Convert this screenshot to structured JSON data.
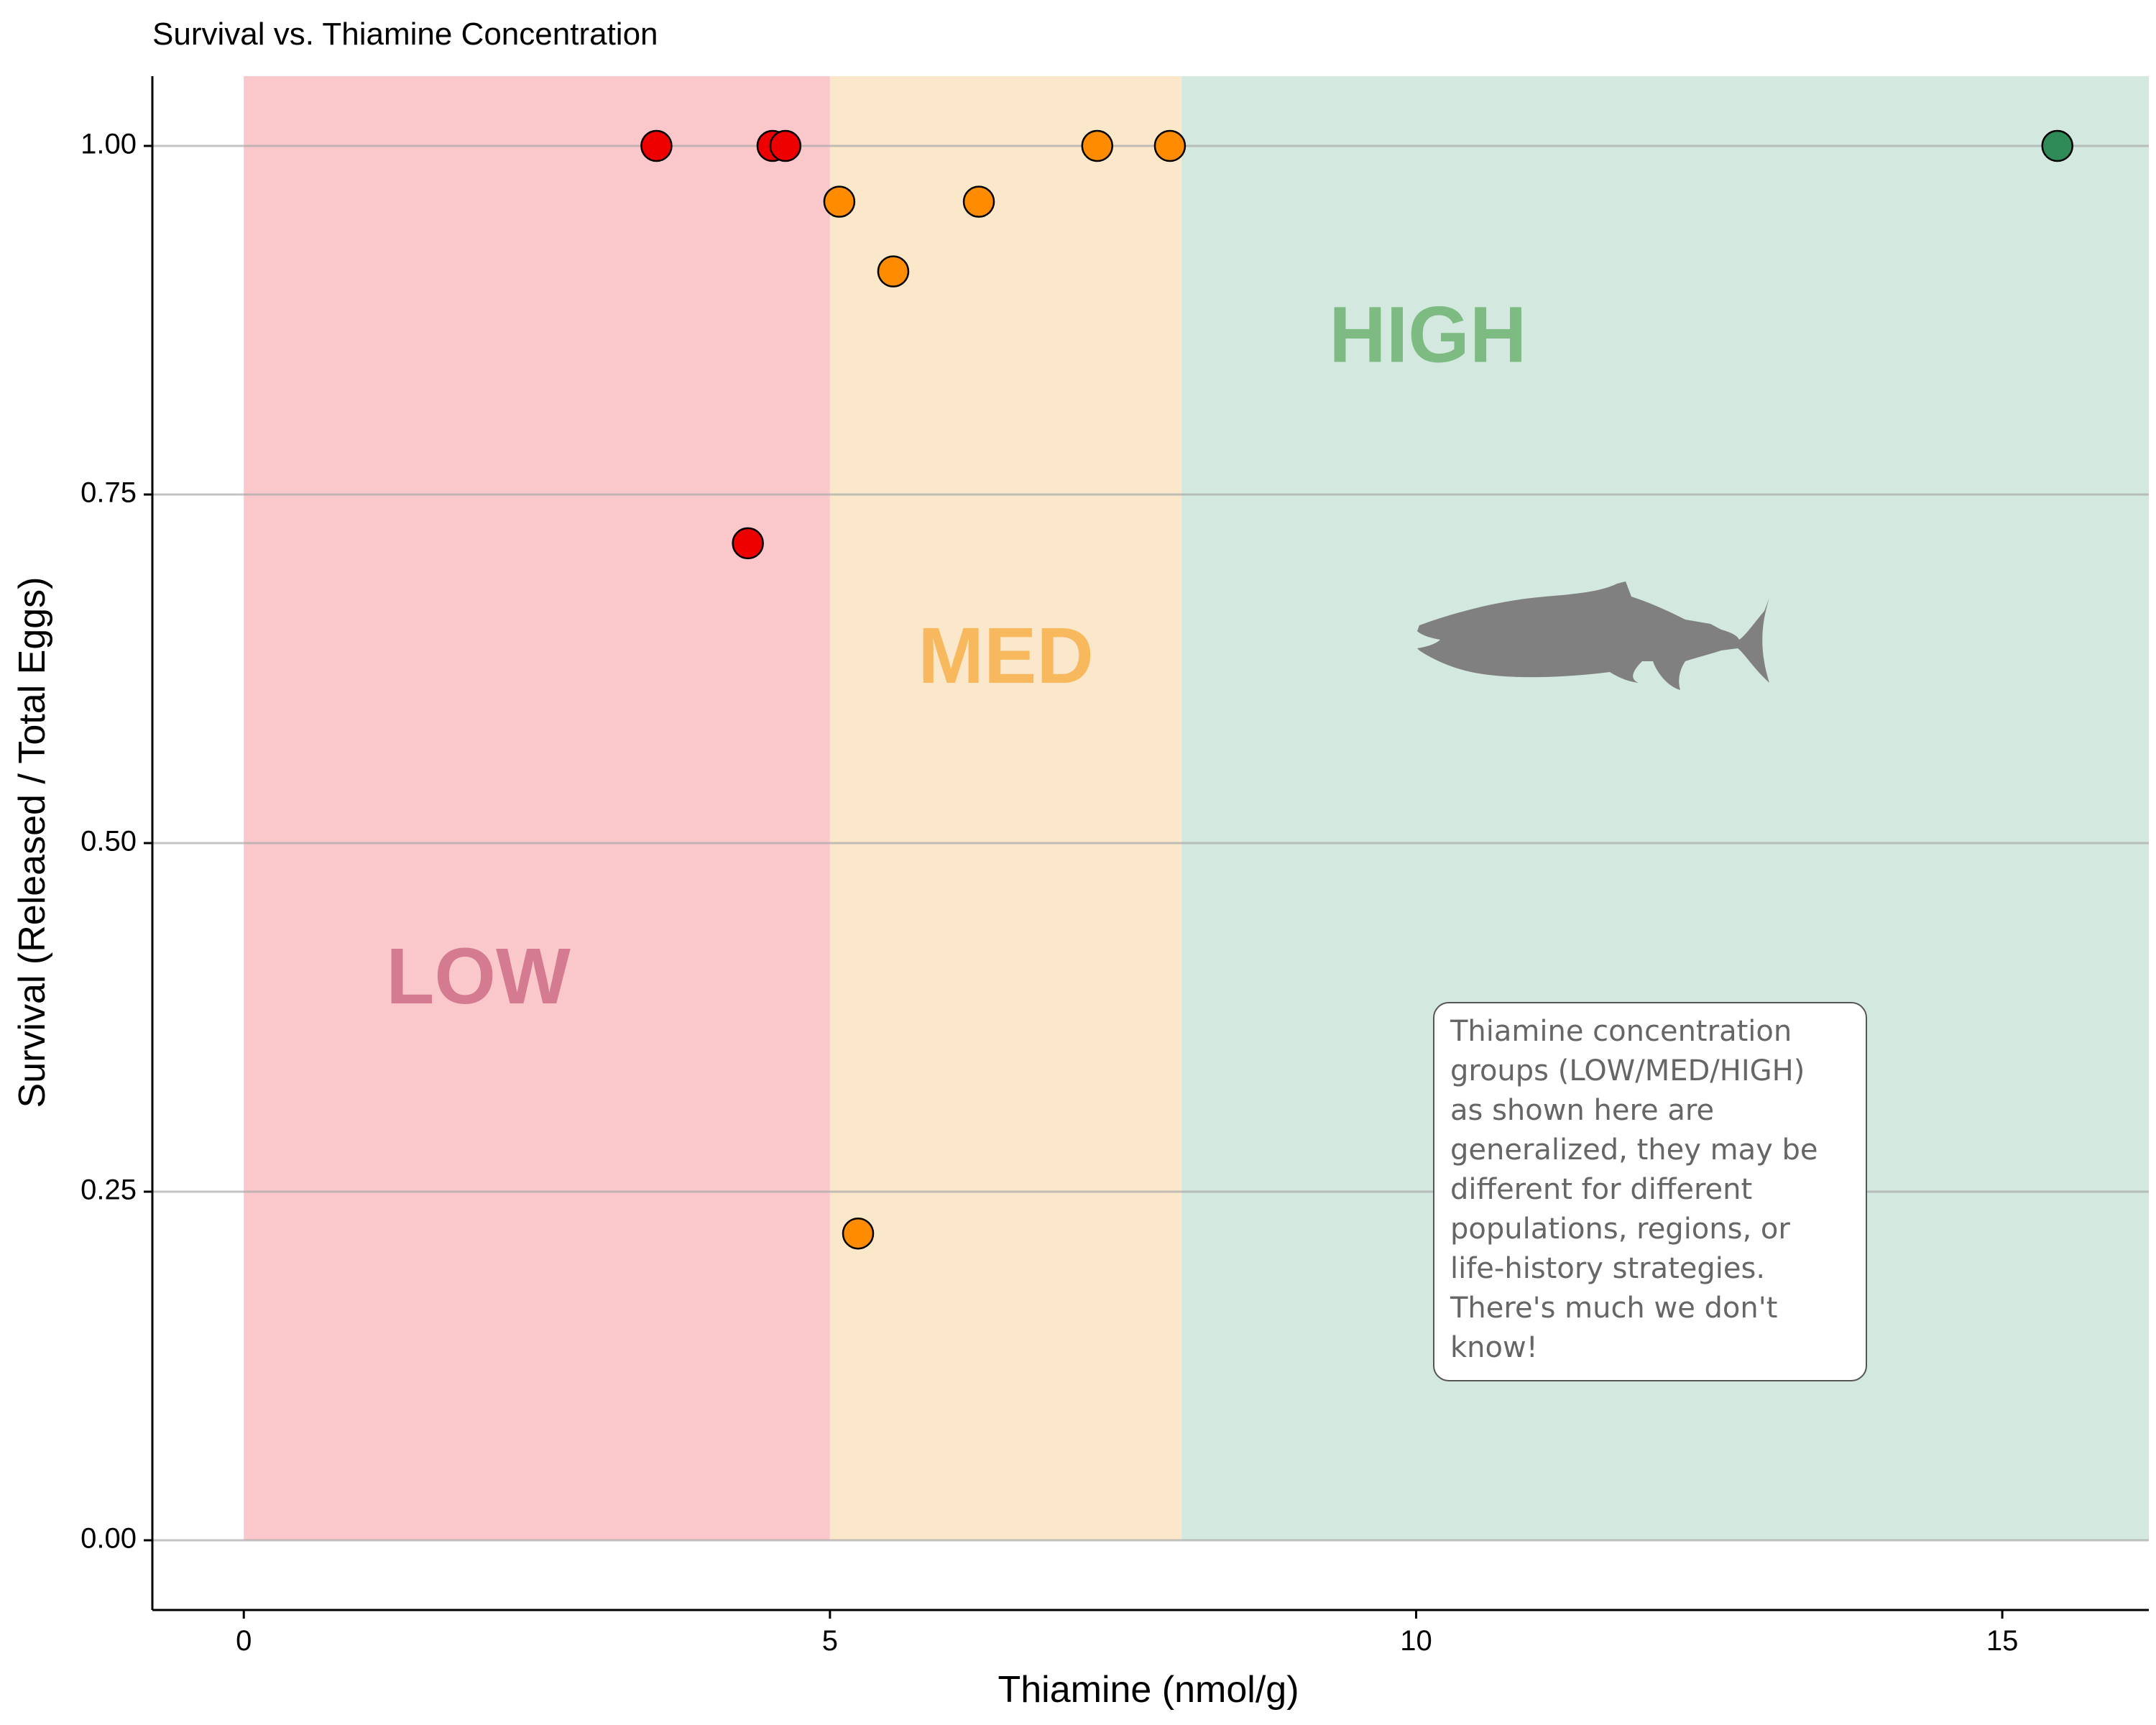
{
  "chart_data": {
    "type": "scatter",
    "title": "Survival vs. Thiamine Concentration",
    "xlabel": "Thiamine (nmol/g)",
    "ylabel": "Survival (Released / Total Eggs)",
    "xlim": [
      -0.78,
      16.25
    ],
    "ylim": [
      -0.05,
      1.05
    ],
    "xticks": [
      0,
      5,
      10,
      15
    ],
    "xtick_labels": [
      "0",
      "5",
      "10",
      "15"
    ],
    "yticks": [
      0,
      0.25,
      0.5,
      0.75,
      1.0
    ],
    "ytick_labels": [
      "0.00",
      "0.25",
      "0.50",
      "0.75",
      "1.00"
    ],
    "grid": "horizontal",
    "zones": [
      {
        "label": "LOW",
        "x_range": [
          0,
          5
        ],
        "color": "#fac8ca",
        "label_color": "#d47a91",
        "label_at": [
          2.0,
          0.4
        ]
      },
      {
        "label": "MED",
        "x_range": [
          5,
          8
        ],
        "color": "#fbe8cb",
        "label_color": "#f7b85e",
        "label_at": [
          6.5,
          0.63
        ]
      },
      {
        "label": "HIGH",
        "x_range": [
          8,
          16.25
        ],
        "color": "#d3e8de",
        "label_color": "#7dbb82",
        "label_at": [
          10.1,
          0.86
        ]
      }
    ],
    "series": [
      {
        "group": "LOW",
        "color": "#ee0000",
        "x": [
          3.52,
          4.3,
          4.51,
          4.62
        ],
        "y": [
          1.0,
          0.715,
          1.0,
          1.0
        ]
      },
      {
        "group": "MED",
        "color": "#ff8c00",
        "x": [
          5.08,
          5.24,
          5.54,
          6.27,
          7.28,
          7.9
        ],
        "y": [
          0.96,
          0.22,
          0.91,
          0.96,
          1.0,
          1.0
        ]
      },
      {
        "group": "HIGH",
        "color": "#2e8b57",
        "x": [
          15.47
        ],
        "y": [
          1.0
        ]
      }
    ],
    "annotation": {
      "lines": [
        "Thiamine concentration",
        "groups (LOW/MED/HIGH)",
        "as shown here are",
        "generalized, they may be",
        "different for different",
        "populations, regions, or",
        "life-history strategies.",
        "There's much we don't",
        "know!"
      ]
    },
    "icon": "salmon-silhouette-icon"
  }
}
